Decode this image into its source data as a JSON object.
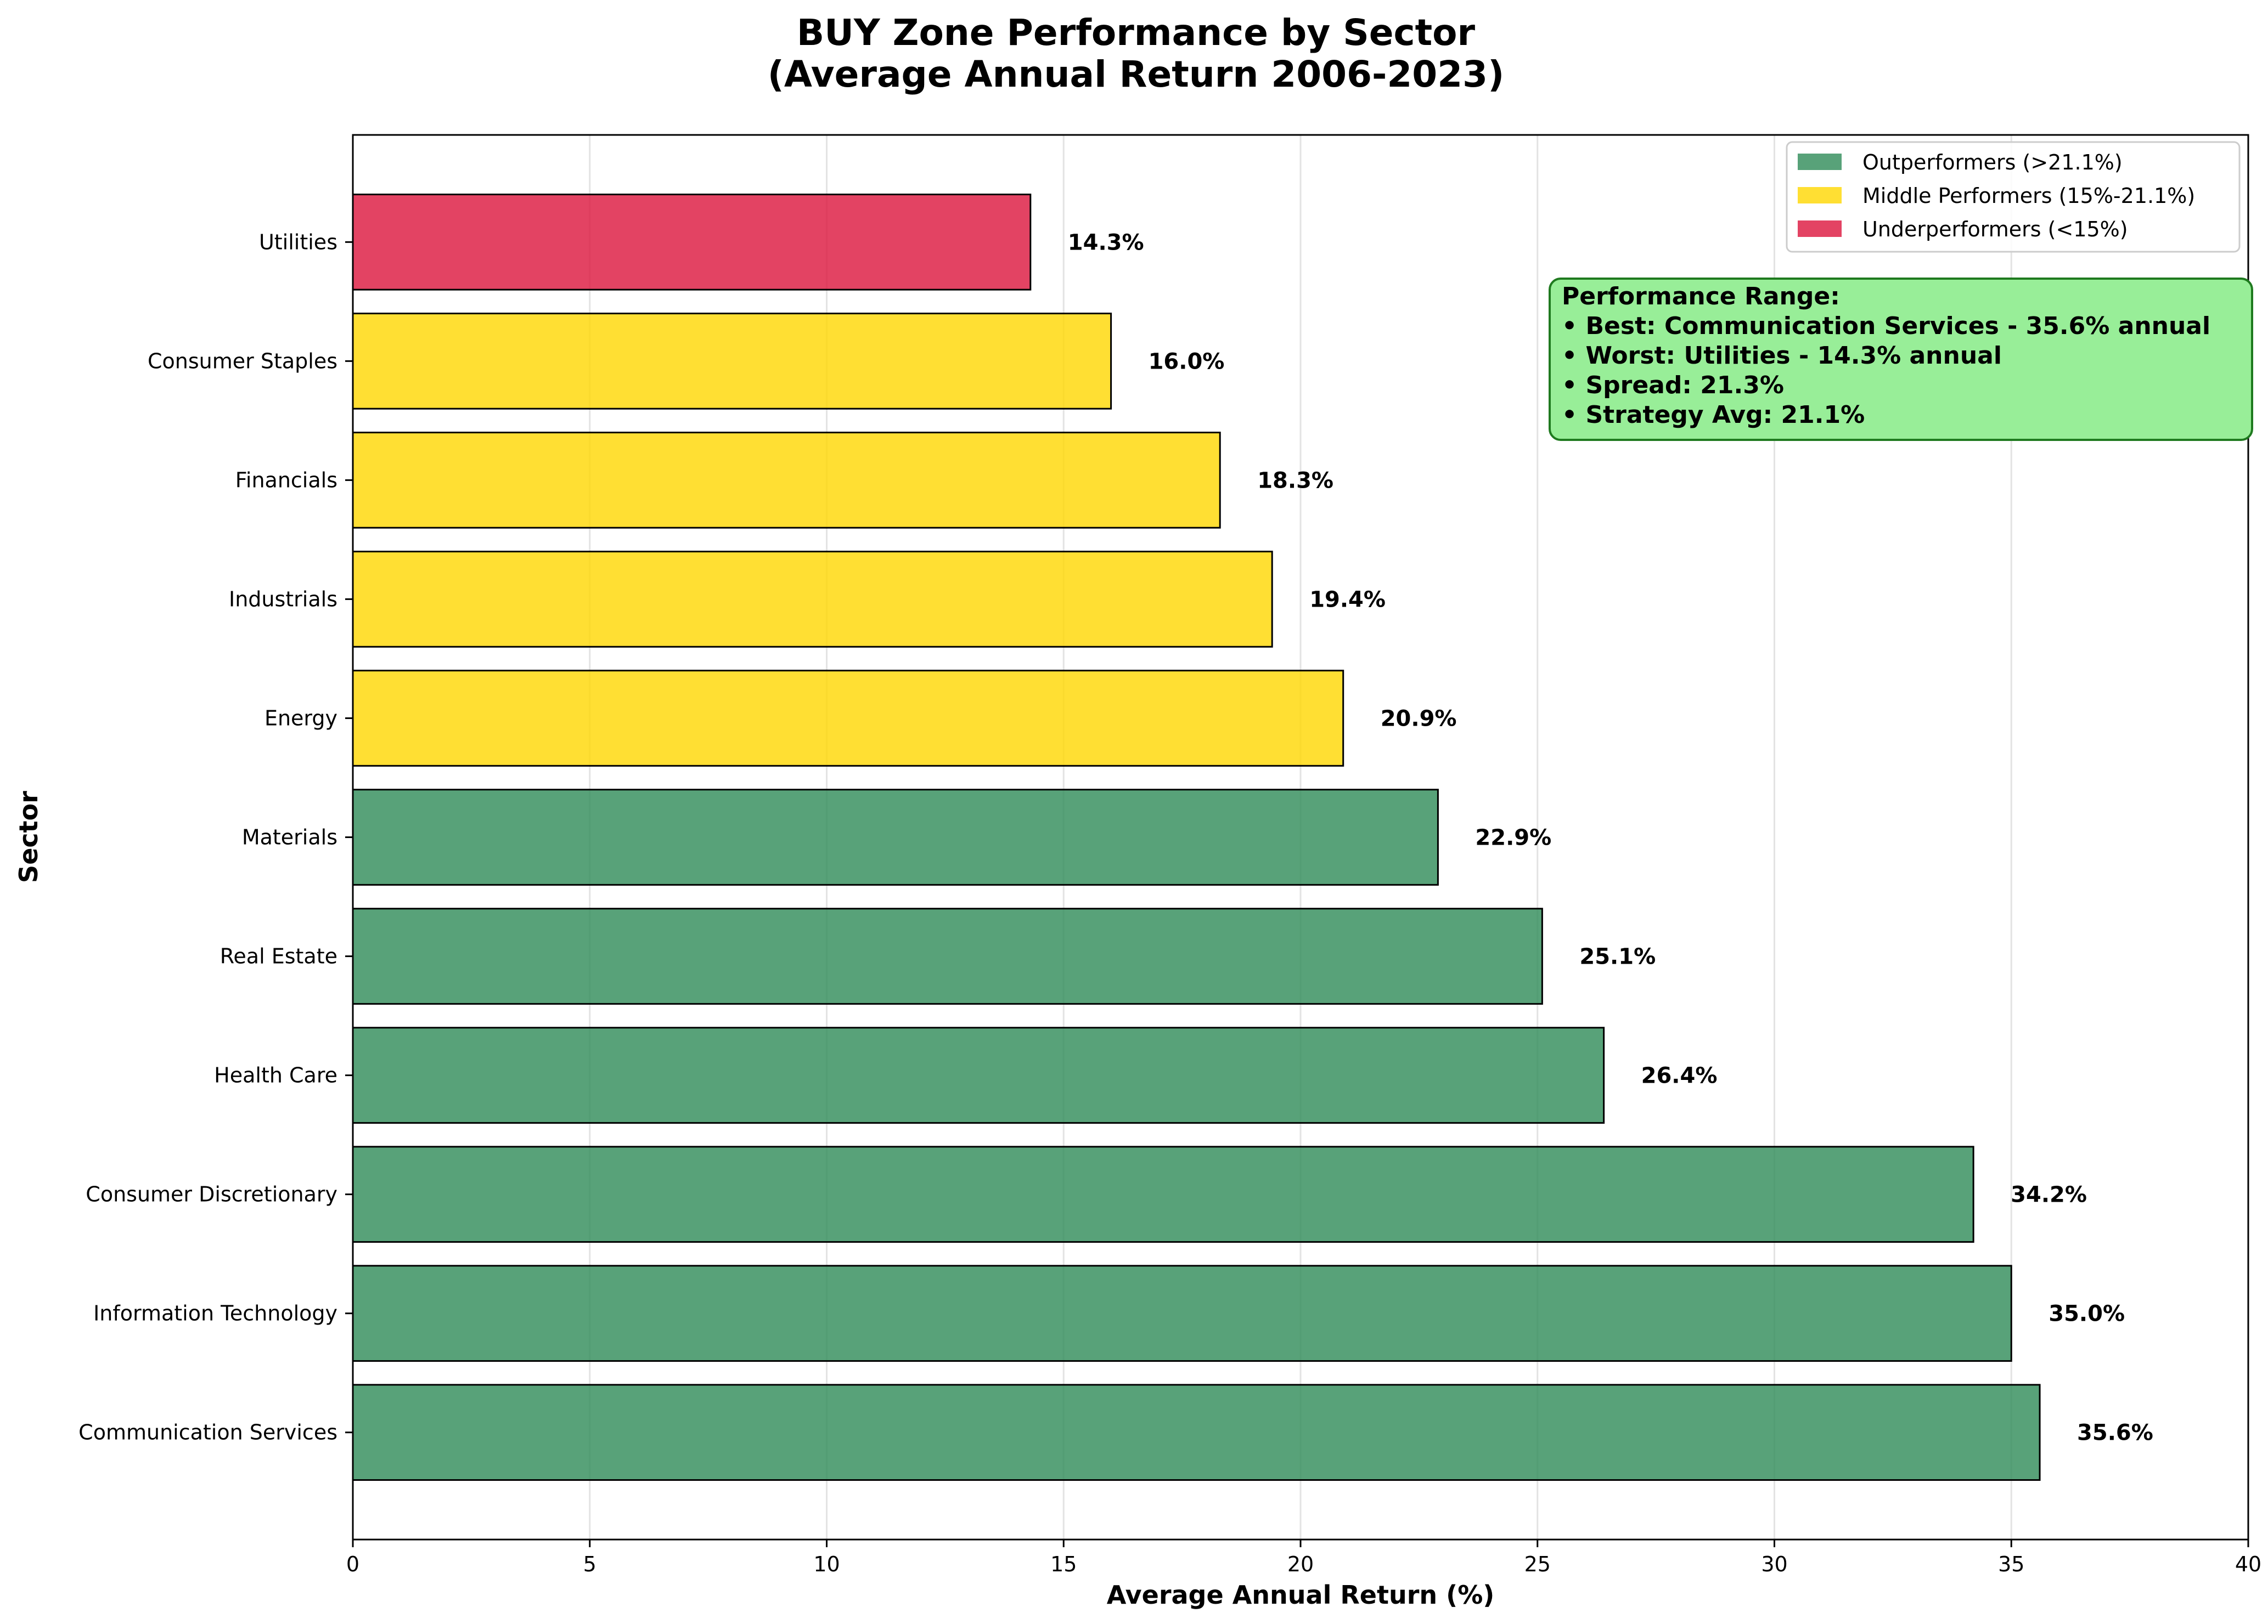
{
  "chart_data": {
    "type": "bar",
    "orientation": "horizontal",
    "title_line1": "BUY Zone Performance by Sector",
    "title_line2": "(Average Annual Return 2006-2023)",
    "xlabel": "Average Annual Return (%)",
    "ylabel": "Sector",
    "xlim": [
      0,
      40
    ],
    "xticks": [
      "0",
      "5",
      "10",
      "15",
      "20",
      "25",
      "30",
      "35",
      "40"
    ],
    "grid": "vertical",
    "categories": [
      "Communication Services",
      "Information Technology",
      "Consumer Discretionary",
      "Health Care",
      "Real Estate",
      "Materials",
      "Energy",
      "Industrials",
      "Financials",
      "Consumer Staples",
      "Utilities"
    ],
    "values": [
      35.6,
      35.0,
      34.2,
      26.4,
      25.1,
      22.9,
      20.9,
      19.4,
      18.3,
      16.0,
      14.3
    ],
    "data_labels": [
      "35.6%",
      "35.0%",
      "34.2%",
      "26.4%",
      "25.1%",
      "22.9%",
      "20.9%",
      "19.4%",
      "18.3%",
      "16.0%",
      "14.3%"
    ],
    "groups": [
      "outperformer",
      "outperformer",
      "outperformer",
      "outperformer",
      "outperformer",
      "outperformer",
      "middle",
      "middle",
      "middle",
      "middle",
      "underperformer"
    ],
    "colors": {
      "outperformer": "#2E8B57",
      "middle": "#FFD700",
      "underperformer": "#DC143C",
      "annotation_bg": "#98EE98",
      "annotation_border": "#1f7a1f"
    },
    "legend": {
      "placement": "top-right",
      "entries": [
        {
          "label": "Outperformers (>21.1%)",
          "group": "outperformer"
        },
        {
          "label": "Middle Performers (15%-21.1%)",
          "group": "middle"
        },
        {
          "label": "Underperformers (<15%)",
          "group": "underperformer"
        }
      ]
    },
    "annotation": {
      "lines": [
        "Performance Range:",
        "• Best: Communication Services - 35.6% annual",
        "• Worst: Utilities - 14.3% annual",
        "• Spread: 21.3%",
        "• Strategy Avg: 21.1%"
      ]
    }
  }
}
